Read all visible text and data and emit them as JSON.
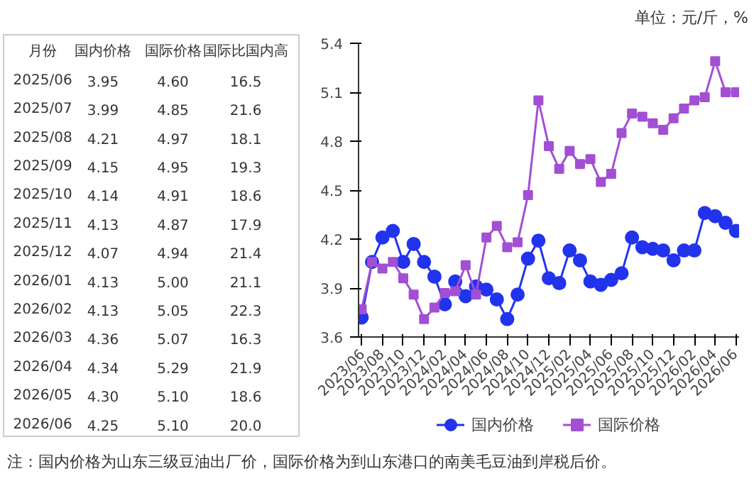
{
  "chart_data": [
    {
      "type": "other",
      "xlabel": "月份",
      "categories": [
        "2025/06",
        "2025/07",
        "2025/08",
        "2025/09",
        "2025/10",
        "2025/11",
        "2025/12",
        "2026/01",
        "2026/02",
        "2026/03",
        "2026/04",
        "2026/05",
        "2026/06"
      ],
      "series": [
        {
          "name": "国内价格",
          "values": [
            3.95,
            3.99,
            4.21,
            4.15,
            4.14,
            4.13,
            4.07,
            4.13,
            4.13,
            4.36,
            4.34,
            4.3,
            4.25
          ],
          "value_labels": [
            "3.95",
            "3.99",
            "4.21",
            "4.15",
            "4.14",
            "4.13",
            "4.07",
            "4.13",
            "4.13",
            "4.36",
            "4.34",
            "4.30",
            "4.25"
          ]
        },
        {
          "name": "国际价格",
          "values": [
            4.6,
            4.85,
            4.97,
            4.95,
            4.91,
            4.87,
            4.94,
            5.0,
            5.05,
            5.07,
            5.29,
            5.1,
            5.1
          ],
          "value_labels": [
            "4.60",
            "4.85",
            "4.97",
            "4.95",
            "4.91",
            "4.87",
            "4.94",
            "5.00",
            "5.05",
            "5.07",
            "5.29",
            "5.10",
            "5.10"
          ]
        },
        {
          "name": "国际比国内高",
          "values": [
            16.5,
            21.6,
            18.1,
            19.3,
            18.6,
            17.9,
            21.4,
            21.1,
            22.3,
            16.3,
            21.9,
            18.6,
            20.0
          ],
          "value_labels": [
            "16.5",
            "21.6",
            "18.1",
            "19.3",
            "18.6",
            "17.9",
            "21.4",
            "21.1",
            "22.3",
            "16.3",
            "21.9",
            "18.6",
            "20.0"
          ]
        }
      ]
    },
    {
      "type": "line",
      "categories": [
        "2023/06",
        null,
        "2023/08",
        null,
        "2023/10",
        null,
        "2023/12",
        null,
        "2024/02",
        null,
        "2024/04",
        null,
        "2024/06",
        null,
        "2024/08",
        null,
        "2024/10",
        null,
        "2024/12",
        null,
        "2025/02",
        null,
        "2025/04",
        null,
        "2025/06",
        null,
        "2025/08",
        null,
        "2025/10",
        null,
        "2025/12",
        null,
        "2026/02",
        null,
        "2026/04",
        null,
        "2026/06"
      ],
      "series": [
        {
          "name": "国内价格",
          "color": "#2233ee",
          "marker": "circle",
          "values": [
            3.72,
            4.06,
            4.21,
            4.25,
            4.06,
            4.17,
            4.06,
            3.97,
            3.8,
            3.94,
            3.85,
            3.91,
            3.89,
            3.83,
            3.71,
            3.86,
            4.08,
            4.19,
            3.96,
            3.93,
            4.13,
            4.07,
            3.94,
            3.92,
            3.95,
            3.99,
            4.21,
            4.15,
            4.14,
            4.13,
            4.07,
            4.13,
            4.13,
            4.36,
            4.34,
            4.3,
            4.25
          ]
        },
        {
          "name": "国际价格",
          "color": "#a24fd4",
          "marker": "square",
          "values": [
            3.77,
            4.06,
            4.02,
            4.06,
            3.96,
            3.86,
            3.71,
            3.78,
            3.87,
            3.88,
            4.04,
            3.86,
            4.21,
            4.28,
            4.15,
            4.18,
            4.47,
            5.05,
            4.77,
            4.63,
            4.74,
            4.66,
            4.69,
            4.55,
            4.6,
            4.85,
            4.97,
            4.95,
            4.91,
            4.87,
            4.94,
            5.0,
            5.05,
            5.07,
            5.29,
            5.1,
            5.1
          ]
        }
      ],
      "ylim": [
        3.6,
        5.4
      ],
      "yticks": [
        3.6,
        3.9,
        4.2,
        4.5,
        4.8,
        5.1,
        5.4
      ],
      "grid": false,
      "legend": "bottom",
      "annotations": [
        "单位：元/斤，%",
        "注：国内价格为山东三级豆油出厂价，国际价格为到山东港口的南美毛豆油到岸税后价。"
      ]
    }
  ]
}
